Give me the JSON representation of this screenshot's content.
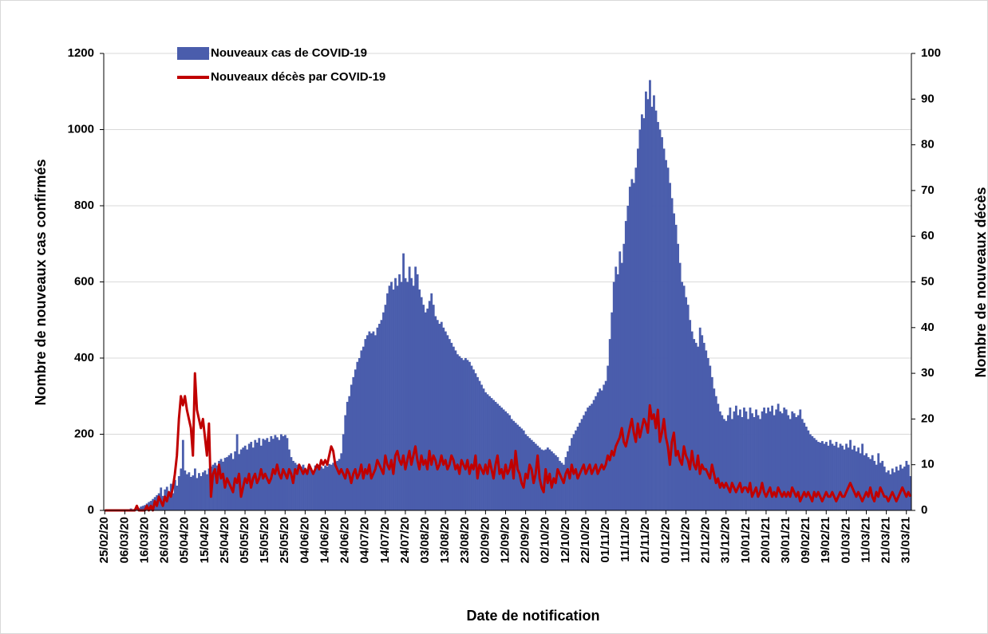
{
  "chart_data": {
    "type": "bar-line",
    "x_label": "Date de notification",
    "y_label": "Nombre de nouveaux cas confirmés",
    "y2_label": "Nombre de nouveaux  décès",
    "legend": "upper left",
    "grid": true,
    "ylim": [
      0,
      1200
    ],
    "yticks": [
      0,
      200,
      400,
      600,
      800,
      1000,
      1200
    ],
    "y2lim": [
      0,
      100
    ],
    "y2ticks": [
      0,
      10,
      20,
      30,
      40,
      50,
      60,
      70,
      80,
      90,
      100
    ],
    "categories": [
      "25/02/20",
      null,
      null,
      null,
      null,
      null,
      null,
      null,
      null,
      null,
      "06/03/20",
      null,
      null,
      null,
      null,
      null,
      null,
      null,
      null,
      null,
      "16/03/20",
      null,
      null,
      null,
      null,
      null,
      null,
      null,
      null,
      null,
      "26/03/20",
      null,
      null,
      null,
      null,
      null,
      null,
      null,
      null,
      null,
      "05/04/20",
      null,
      null,
      null,
      null,
      null,
      null,
      null,
      null,
      null,
      "15/04/20",
      null,
      null,
      null,
      null,
      null,
      null,
      null,
      null,
      null,
      "25/04/20",
      null,
      null,
      null,
      null,
      null,
      null,
      null,
      null,
      null,
      "05/05/20",
      null,
      null,
      null,
      null,
      null,
      null,
      null,
      null,
      null,
      "15/05/20",
      null,
      null,
      null,
      null,
      null,
      null,
      null,
      null,
      null,
      "25/05/20",
      null,
      null,
      null,
      null,
      null,
      null,
      null,
      null,
      null,
      "04/06/20",
      null,
      null,
      null,
      null,
      null,
      null,
      null,
      null,
      null,
      "14/06/20",
      null,
      null,
      null,
      null,
      null,
      null,
      null,
      null,
      null,
      "24/06/20",
      null,
      null,
      null,
      null,
      null,
      null,
      null,
      null,
      null,
      "04/07/20",
      null,
      null,
      null,
      null,
      null,
      null,
      null,
      null,
      null,
      "14/07/20",
      null,
      null,
      null,
      null,
      null,
      null,
      null,
      null,
      null,
      "24/07/20",
      null,
      null,
      null,
      null,
      null,
      null,
      null,
      null,
      null,
      "03/08/20",
      null,
      null,
      null,
      null,
      null,
      null,
      null,
      null,
      null,
      "13/08/20",
      null,
      null,
      null,
      null,
      null,
      null,
      null,
      null,
      null,
      "23/08/20",
      null,
      null,
      null,
      null,
      null,
      null,
      null,
      null,
      null,
      "02/09/20",
      null,
      null,
      null,
      null,
      null,
      null,
      null,
      null,
      null,
      "12/09/20",
      null,
      null,
      null,
      null,
      null,
      null,
      null,
      null,
      null,
      "22/09/20",
      null,
      null,
      null,
      null,
      null,
      null,
      null,
      null,
      null,
      "02/10/20",
      null,
      null,
      null,
      null,
      null,
      null,
      null,
      null,
      null,
      "12/10/20",
      null,
      null,
      null,
      null,
      null,
      null,
      null,
      null,
      null,
      "22/10/20",
      null,
      null,
      null,
      null,
      null,
      null,
      null,
      null,
      null,
      "01/11/20",
      null,
      null,
      null,
      null,
      null,
      null,
      null,
      null,
      null,
      "11/11/20",
      null,
      null,
      null,
      null,
      null,
      null,
      null,
      null,
      null,
      "21/11/20",
      null,
      null,
      null,
      null,
      null,
      null,
      null,
      null,
      null,
      "01/12/20",
      null,
      null,
      null,
      null,
      null,
      null,
      null,
      null,
      null,
      "11/12/20",
      null,
      null,
      null,
      null,
      null,
      null,
      null,
      null,
      null,
      "21/12/20",
      null,
      null,
      null,
      null,
      null,
      null,
      null,
      null,
      null,
      "31/12/20",
      null,
      null,
      null,
      null,
      null,
      null,
      null,
      null,
      null,
      "10/01/21",
      null,
      null,
      null,
      null,
      null,
      null,
      null,
      null,
      null,
      "20/01/21",
      null,
      null,
      null,
      null,
      null,
      null,
      null,
      null,
      null,
      "30/01/21",
      null,
      null,
      null,
      null,
      null,
      null,
      null,
      null,
      null,
      "09/02/21",
      null,
      null,
      null,
      null,
      null,
      null,
      null,
      null,
      null,
      "19/02/21",
      null,
      null,
      null,
      null,
      null,
      null,
      null,
      null,
      null,
      "01/03/21",
      null,
      null,
      null,
      null,
      null,
      null,
      null,
      null,
      null,
      "11/03/21",
      null,
      null,
      null,
      null,
      null,
      null,
      null,
      null,
      null,
      "21/03/21",
      null,
      null,
      null,
      null,
      null,
      null,
      null,
      null,
      null,
      "31/03/21",
      null,
      null
    ],
    "series": [
      {
        "name": "Nouveaux cas de COVID-19",
        "type": "bar",
        "color": "#4a5dac",
        "values": [
          0,
          0,
          0,
          0,
          0,
          0,
          0,
          0,
          1,
          0,
          2,
          0,
          3,
          5,
          1,
          4,
          8,
          6,
          10,
          12,
          14,
          18,
          22,
          25,
          30,
          35,
          40,
          45,
          60,
          38,
          55,
          62,
          50,
          70,
          45,
          80,
          65,
          90,
          110,
          185,
          105,
          95,
          100,
          88,
          92,
          110,
          85,
          98,
          90,
          100,
          105,
          95,
          110,
          115,
          120,
          125,
          118,
          130,
          135,
          128,
          138,
          140,
          145,
          150,
          135,
          155,
          200,
          148,
          160,
          165,
          170,
          160,
          175,
          180,
          165,
          185,
          178,
          190,
          170,
          188,
          185,
          190,
          180,
          195,
          188,
          198,
          192,
          185,
          200,
          195,
          198,
          190,
          160,
          140,
          130,
          125,
          120,
          118,
          115,
          120,
          112,
          108,
          115,
          110,
          105,
          118,
          112,
          120,
          115,
          110,
          118,
          115,
          122,
          120,
          125,
          128,
          130,
          135,
          150,
          200,
          250,
          285,
          300,
          330,
          350,
          370,
          390,
          400,
          420,
          430,
          450,
          460,
          470,
          465,
          470,
          460,
          480,
          490,
          500,
          520,
          540,
          570,
          590,
          600,
          580,
          610,
          590,
          620,
          600,
          675,
          610,
          600,
          640,
          610,
          590,
          640,
          620,
          580,
          560,
          540,
          520,
          530,
          550,
          570,
          540,
          510,
          500,
          490,
          495,
          480,
          470,
          460,
          450,
          440,
          430,
          420,
          410,
          405,
          400,
          395,
          400,
          395,
          390,
          380,
          370,
          360,
          350,
          340,
          330,
          320,
          310,
          305,
          300,
          295,
          290,
          285,
          280,
          275,
          270,
          265,
          260,
          255,
          250,
          240,
          235,
          230,
          225,
          220,
          215,
          210,
          200,
          195,
          190,
          185,
          180,
          175,
          170,
          165,
          160,
          158,
          160,
          165,
          160,
          155,
          150,
          145,
          140,
          130,
          125,
          120,
          140,
          155,
          170,
          190,
          200,
          210,
          220,
          230,
          240,
          250,
          260,
          270,
          275,
          280,
          290,
          300,
          310,
          320,
          315,
          330,
          340,
          380,
          450,
          520,
          600,
          640,
          620,
          680,
          650,
          700,
          760,
          800,
          850,
          870,
          860,
          900,
          950,
          1000,
          1040,
          1030,
          1100,
          1080,
          1130,
          1060,
          1090,
          1050,
          1020,
          1000,
          980,
          950,
          920,
          900,
          860,
          820,
          780,
          750,
          700,
          650,
          600,
          590,
          560,
          540,
          500,
          470,
          450,
          440,
          430,
          480,
          460,
          440,
          420,
          400,
          380,
          350,
          320,
          300,
          280,
          260,
          250,
          240,
          235,
          250,
          270,
          240,
          260,
          275,
          250,
          265,
          245,
          270,
          260,
          240,
          270,
          255,
          245,
          265,
          250,
          240,
          260,
          270,
          255,
          270,
          260,
          275,
          250,
          265,
          280,
          260,
          255,
          270,
          265,
          250,
          240,
          260,
          255,
          245,
          250,
          265,
          240,
          230,
          220,
          210,
          200,
          195,
          190,
          185,
          180,
          178,
          182,
          175,
          180,
          170,
          185,
          175,
          170,
          180,
          165,
          175,
          170,
          160,
          175,
          165,
          185,
          160,
          170,
          155,
          165,
          150,
          175,
          145,
          150,
          140,
          135,
          145,
          130,
          120,
          150,
          125,
          130,
          115,
          100,
          105,
          95,
          110,
          100,
          115,
          105,
          120,
          110,
          115,
          130,
          120,
          90
        ]
      },
      {
        "name": "Nouveaux décès par COVID-19",
        "type": "line",
        "axis": "y2",
        "color": "#c00000",
        "values": [
          0,
          0,
          0,
          0,
          0,
          0,
          0,
          0,
          0,
          0,
          0,
          0,
          0,
          0,
          0,
          0,
          1,
          0,
          0,
          0,
          0,
          1,
          0,
          1,
          0,
          2,
          1,
          3,
          2,
          1,
          3,
          2,
          4,
          3,
          5,
          8,
          12,
          20,
          25,
          23,
          25,
          22,
          20,
          18,
          12,
          30,
          22,
          20,
          18,
          20,
          16,
          12,
          19,
          3,
          8,
          9,
          6,
          10,
          7,
          8,
          5,
          7,
          6,
          5,
          4,
          7,
          6,
          8,
          3,
          5,
          7,
          6,
          8,
          5,
          7,
          8,
          6,
          7,
          9,
          7,
          8,
          7,
          6,
          7,
          9,
          8,
          10,
          8,
          7,
          9,
          8,
          7,
          9,
          8,
          6,
          9,
          8,
          10,
          9,
          8,
          9,
          8,
          10,
          9,
          8,
          9,
          10,
          9,
          11,
          10,
          11,
          10,
          12,
          14,
          13,
          10,
          9,
          8,
          9,
          8,
          7,
          9,
          8,
          6,
          8,
          9,
          7,
          8,
          10,
          7,
          9,
          8,
          10,
          7,
          8,
          9,
          11,
          10,
          9,
          8,
          12,
          10,
          9,
          11,
          8,
          12,
          13,
          11,
          10,
          12,
          9,
          11,
          13,
          10,
          12,
          14,
          11,
          9,
          12,
          10,
          11,
          9,
          13,
          10,
          12,
          11,
          9,
          10,
          12,
          10,
          11,
          9,
          10,
          12,
          11,
          9,
          10,
          8,
          11,
          10,
          9,
          11,
          8,
          10,
          9,
          12,
          7,
          10,
          9,
          8,
          10,
          8,
          11,
          9,
          7,
          10,
          12,
          8,
          9,
          7,
          10,
          8,
          9,
          11,
          7,
          13,
          9,
          8,
          6,
          5,
          8,
          7,
          10,
          9,
          6,
          8,
          12,
          7,
          5,
          4,
          9,
          6,
          8,
          5,
          7,
          6,
          9,
          8,
          7,
          6,
          8,
          9,
          7,
          10,
          8,
          9,
          7,
          8,
          9,
          10,
          8,
          9,
          10,
          8,
          9,
          10,
          8,
          9,
          10,
          9,
          10,
          12,
          11,
          13,
          12,
          14,
          15,
          16,
          18,
          15,
          14,
          16,
          18,
          20,
          17,
          15,
          19,
          16,
          18,
          20,
          19,
          17,
          23,
          20,
          21,
          18,
          22,
          15,
          17,
          20,
          16,
          14,
          10,
          15,
          17,
          12,
          13,
          11,
          10,
          14,
          12,
          11,
          9,
          13,
          10,
          9,
          12,
          8,
          10,
          9,
          9,
          8,
          7,
          10,
          8,
          6,
          7,
          5,
          6,
          5,
          6,
          5,
          4,
          6,
          5,
          4,
          5,
          6,
          4,
          5,
          5,
          4,
          6,
          3,
          4,
          5,
          3,
          4,
          6,
          4,
          3,
          4,
          5,
          3,
          4,
          3,
          5,
          4,
          3,
          4,
          3,
          4,
          3,
          5,
          4,
          3,
          4,
          2,
          3,
          4,
          3,
          4,
          3,
          2,
          4,
          3,
          4,
          3,
          2,
          3,
          4,
          3,
          3,
          4,
          3,
          2,
          3,
          4,
          3,
          3,
          4,
          5,
          6,
          5,
          4,
          3,
          4,
          3,
          2,
          3,
          4,
          3,
          5,
          3,
          2,
          4,
          3,
          5,
          4,
          3,
          3,
          2,
          3,
          4,
          3,
          2,
          3,
          4,
          5,
          4,
          3,
          4,
          3
        ]
      }
    ]
  }
}
